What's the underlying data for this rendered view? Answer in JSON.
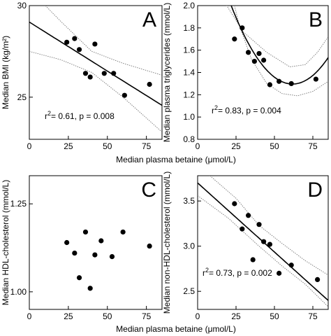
{
  "xlabel_top": "Median plasma betaine (μmol/L)",
  "xlabel_bottom": "Median plasma betaine (μmol/L)",
  "chart_data": [
    {
      "letter": "A",
      "type": "scatter",
      "ylabel": "Median BMI (kg/m²)",
      "xlim": [
        0,
        85
      ],
      "ylim": [
        22.7,
        30
      ],
      "xticks": [
        "0",
        "25",
        "50",
        "75"
      ],
      "xtick_values": [
        0,
        25,
        50,
        75
      ],
      "yticks": [
        "25",
        "30"
      ],
      "ytick_values": [
        25,
        30
      ],
      "points": [
        [
          24,
          28.0
        ],
        [
          29,
          28.2
        ],
        [
          32,
          27.6
        ],
        [
          36,
          26.3
        ],
        [
          39,
          26.1
        ],
        [
          42,
          27.9
        ],
        [
          48,
          26.3
        ],
        [
          54,
          26.3
        ],
        [
          61,
          25.1
        ],
        [
          77,
          25.7
        ]
      ],
      "fit": {
        "kind": "linear",
        "intercept": 29.1,
        "slope": -0.0535
      },
      "ci_upper": [
        [
          0,
          30.9
        ],
        [
          20,
          29.15
        ],
        [
          40,
          27.5
        ],
        [
          60,
          26.85
        ],
        [
          85,
          26.2
        ]
      ],
      "ci_lower": [
        [
          0,
          27.5
        ],
        [
          20,
          27.05
        ],
        [
          40,
          26.35
        ],
        [
          60,
          25.0
        ],
        [
          85,
          23.1
        ]
      ],
      "annotation": {
        "r2": "0.61",
        "p": "0.008"
      }
    },
    {
      "letter": "B",
      "type": "scatter",
      "ylabel": "Median plasma triglycerides (mmol/L)",
      "xlim": [
        0,
        85
      ],
      "ylim": [
        0.8,
        2.0
      ],
      "xticks": [
        "0",
        "25",
        "50",
        "75"
      ],
      "xtick_values": [
        0,
        25,
        50,
        75
      ],
      "yticks": [
        "0.8",
        "1.0",
        "1.2",
        "1.4",
        "1.6",
        "1.8",
        "2.0"
      ],
      "ytick_values": [
        0.8,
        1.0,
        1.2,
        1.4,
        1.6,
        1.8,
        2.0
      ],
      "points": [
        [
          24,
          1.7
        ],
        [
          29,
          1.8
        ],
        [
          33,
          1.58
        ],
        [
          37,
          1.5
        ],
        [
          40,
          1.57
        ],
        [
          43,
          1.51
        ],
        [
          47,
          1.29
        ],
        [
          53,
          1.32
        ],
        [
          61,
          1.3
        ],
        [
          77,
          1.34
        ]
      ],
      "fit": {
        "kind": "quadratic",
        "a": 0.000441,
        "b": -0.0545,
        "c": 2.98
      },
      "ci_upper": [
        [
          18,
          2.02
        ],
        [
          30,
          1.76
        ],
        [
          45,
          1.58
        ],
        [
          60,
          1.45
        ],
        [
          70,
          1.47
        ],
        [
          78,
          1.58
        ],
        [
          85,
          1.72
        ]
      ],
      "ci_lower": [
        [
          24,
          2.0
        ],
        [
          27,
          1.83
        ],
        [
          35,
          1.52
        ],
        [
          45,
          1.3
        ],
        [
          55,
          1.21
        ],
        [
          65,
          1.19
        ],
        [
          75,
          1.23
        ],
        [
          85,
          1.32
        ]
      ],
      "annotation": {
        "r2": "0.83",
        "p": "0.004"
      }
    },
    {
      "letter": "C",
      "type": "scatter",
      "ylabel": "Median HDL-cholesterol (mmol/L)",
      "xlim": [
        0,
        85
      ],
      "ylim": [
        0.95,
        1.33
      ],
      "xticks": [
        "0",
        "25",
        "50",
        "75"
      ],
      "xtick_values": [
        0,
        25,
        50,
        75
      ],
      "yticks": [
        "1.00",
        "1.25"
      ],
      "ytick_values": [
        1.0,
        1.25
      ],
      "points": [
        [
          24,
          1.14
        ],
        [
          29,
          1.11
        ],
        [
          32,
          1.04
        ],
        [
          36,
          1.17
        ],
        [
          39,
          1.01
        ],
        [
          42,
          1.105
        ],
        [
          46,
          1.145
        ],
        [
          53,
          1.1
        ],
        [
          60,
          1.17
        ],
        [
          77,
          1.13
        ]
      ]
    },
    {
      "letter": "D",
      "type": "scatter",
      "ylabel": "Median non-HDL-cholesterol (mmol/L)",
      "xlim": [
        0,
        85
      ],
      "ylim": [
        2.3,
        3.78
      ],
      "xticks": [
        "0",
        "25",
        "50",
        "75"
      ],
      "xtick_values": [
        0,
        25,
        50,
        75
      ],
      "yticks": [
        "2.5",
        "3.0",
        "3.5"
      ],
      "ytick_values": [
        2.5,
        3.0,
        3.5
      ],
      "points": [
        [
          24,
          3.47
        ],
        [
          29,
          3.19
        ],
        [
          33,
          3.34
        ],
        [
          36,
          2.85
        ],
        [
          40,
          3.24
        ],
        [
          43,
          3.05
        ],
        [
          47,
          3.02
        ],
        [
          53,
          2.7
        ],
        [
          61,
          2.79
        ],
        [
          78,
          2.63
        ]
      ],
      "fit": {
        "kind": "linear",
        "intercept": 3.7,
        "slope": -0.0153
      },
      "ci_upper": [
        [
          8,
          3.78
        ],
        [
          25,
          3.53
        ],
        [
          40,
          3.23
        ],
        [
          55,
          3.03
        ],
        [
          70,
          2.84
        ],
        [
          85,
          2.68
        ]
      ],
      "ci_lower": [
        [
          0,
          3.56
        ],
        [
          20,
          3.31
        ],
        [
          40,
          3.0
        ],
        [
          55,
          2.78
        ],
        [
          70,
          2.58
        ],
        [
          85,
          2.33
        ]
      ],
      "annotation": {
        "r2": "0.73",
        "p": "0.002"
      }
    }
  ]
}
